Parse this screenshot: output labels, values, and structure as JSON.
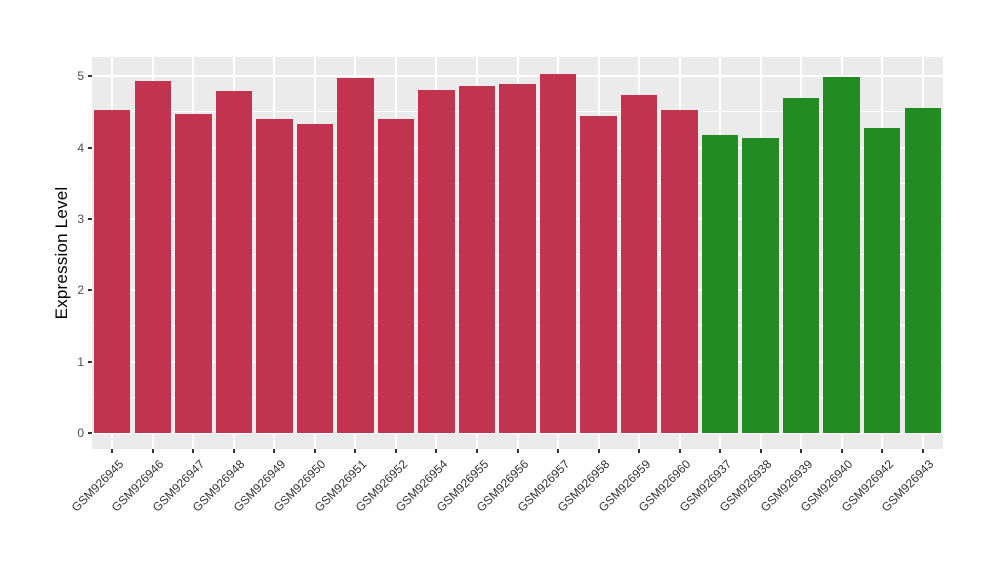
{
  "figure": {
    "background": "#ffffff",
    "panel_background": "#ebebeb",
    "gridline_color": "#ffffff",
    "tick_mark_color": "#333333",
    "tick_label_color": "#4d4d4d",
    "axis_title_color": "#000000"
  },
  "chart_data": {
    "type": "bar",
    "title": "",
    "xlabel": "",
    "ylabel": "Expression Level",
    "ylim": [
      0,
      5.27
    ],
    "yticks": [
      0,
      1,
      2,
      3,
      4,
      5
    ],
    "grid": "white major horizontal lines at integers, thinner minor lines at 0.5 steps, vertical major lines at category centers, on gray panel",
    "legend_position": "none",
    "categories": [
      "GSM926945",
      "GSM926946",
      "GSM926947",
      "GSM926948",
      "GSM926949",
      "GSM926950",
      "GSM926951",
      "GSM926952",
      "GSM926954",
      "GSM926955",
      "GSM926956",
      "GSM926957",
      "GSM926958",
      "GSM926959",
      "GSM926960",
      "GSM926937",
      "GSM926938",
      "GSM926939",
      "GSM926940",
      "GSM926942",
      "GSM926943"
    ],
    "values": [
      4.53,
      4.93,
      4.47,
      4.8,
      4.4,
      4.33,
      4.98,
      4.4,
      4.81,
      4.86,
      4.89,
      5.03,
      4.44,
      4.74,
      4.53,
      4.17,
      4.14,
      4.69,
      4.99,
      4.27,
      4.55
    ],
    "groups": [
      {
        "name": "red-group",
        "color": "#c23350",
        "start": 0,
        "count": 15
      },
      {
        "name": "green-group",
        "color": "#228b22",
        "start": 15,
        "count": 6
      }
    ],
    "bar_colors": [
      "#c23350",
      "#c23350",
      "#c23350",
      "#c23350",
      "#c23350",
      "#c23350",
      "#c23350",
      "#c23350",
      "#c23350",
      "#c23350",
      "#c23350",
      "#c23350",
      "#c23350",
      "#c23350",
      "#c23350",
      "#228b22",
      "#228b22",
      "#228b22",
      "#228b22",
      "#228b22",
      "#228b22"
    ]
  }
}
